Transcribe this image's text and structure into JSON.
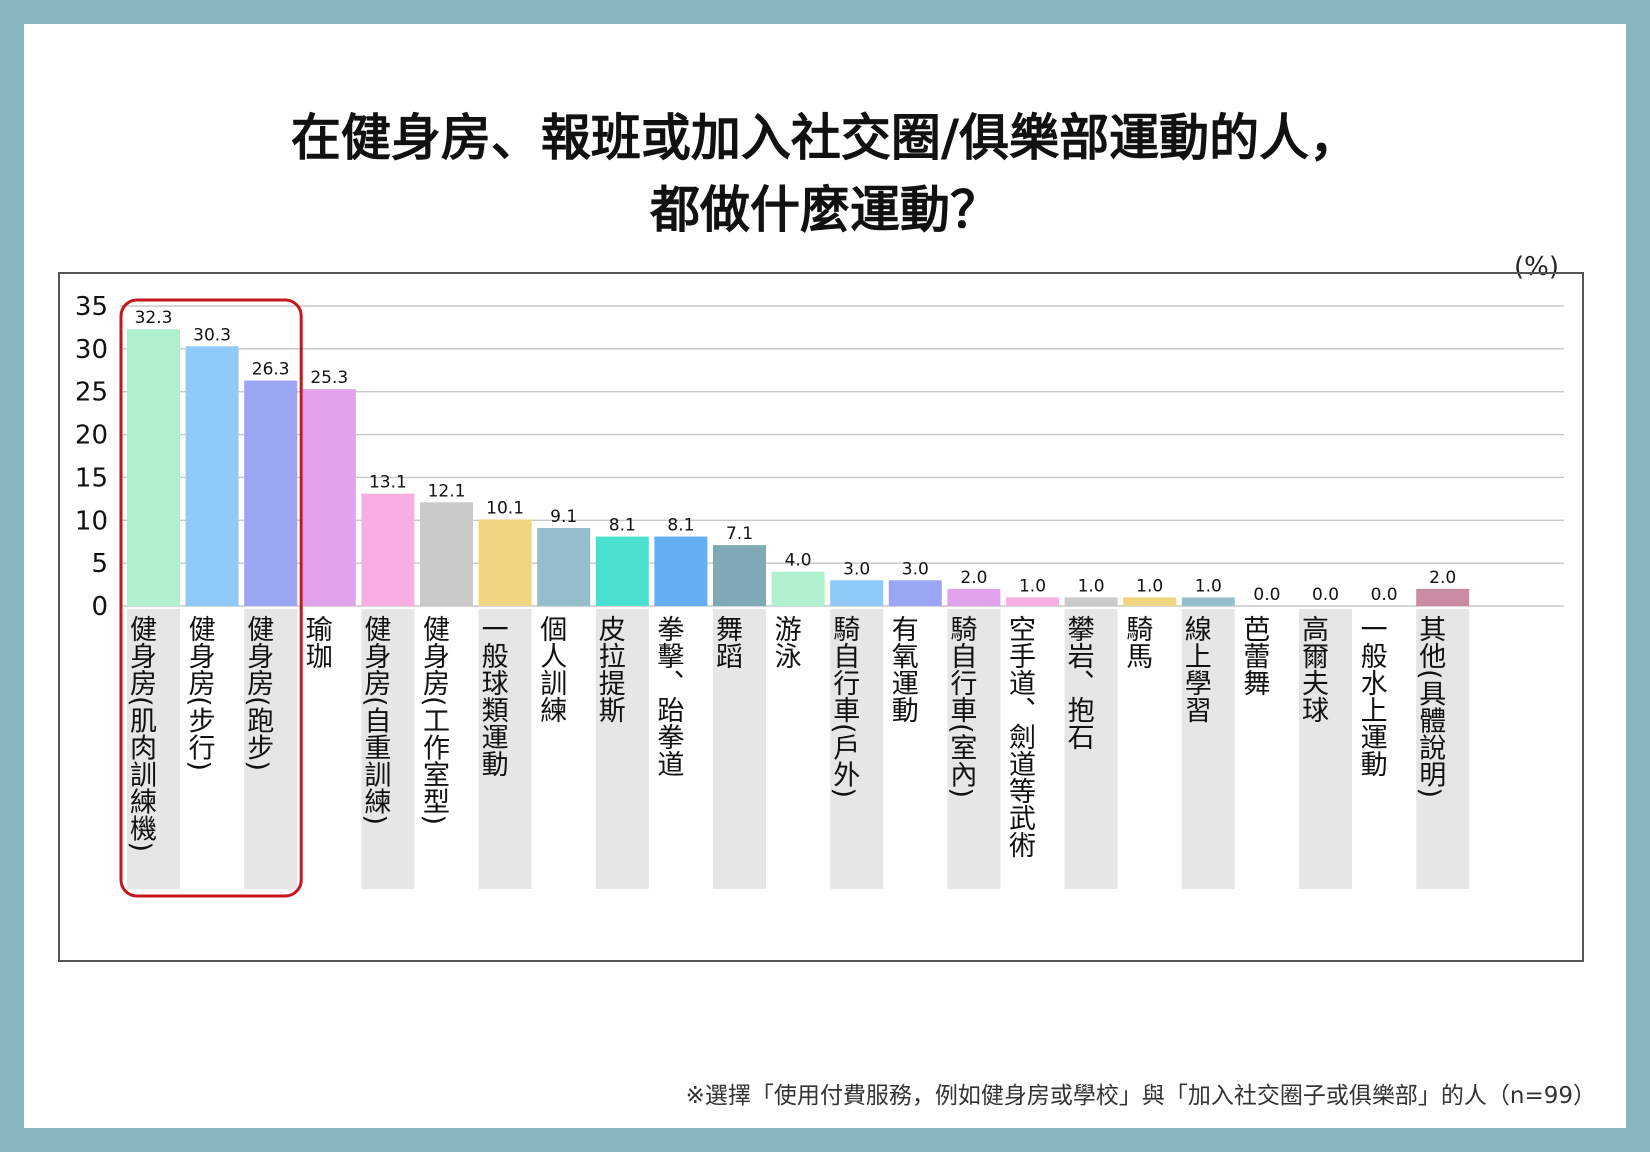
{
  "title_lines": [
    "在健身房、報班或加入社交圈/俱樂部運動的人，",
    "都做什麼運動？"
  ],
  "unit": "(%)",
  "footnote": "※選擇「使用付費服務，例如健身房或學校」與「加入社交圈子或俱樂部」的人（n=99）",
  "colors": {
    "highlight_box": "#c8161d",
    "label_band": "#e6e6e6",
    "grid": "#c8c8c8"
  },
  "chart_data": {
    "type": "bar",
    "title": "在健身房、報班或加入社交圈/俱樂部運動的人，都做什麼運動？",
    "ylabel": "(%)",
    "ylim": [
      0,
      35
    ],
    "yticks": [
      0,
      5,
      10,
      15,
      20,
      25,
      30,
      35
    ],
    "grid": true,
    "highlight": [
      0,
      1,
      2
    ],
    "categories": [
      "健身房(肌肉訓練機)",
      "健身房(步行)",
      "健身房(跑步)",
      "瑜珈",
      "健身房(自重訓練)",
      "健身房(工作室型)",
      "一般球類運動",
      "個人訓練",
      "皮拉提斯",
      "拳擊、跆拳道",
      "舞蹈",
      "游泳",
      "騎自行車(戶外)",
      "有氧運動",
      "騎自行車(室內)",
      "空手道、劍道等武術",
      "攀岩、抱石",
      "騎馬",
      "線上學習",
      "芭蕾舞",
      "高爾夫球",
      "一般水上運動",
      "其他(具體說明)"
    ],
    "values": [
      32.3,
      30.3,
      26.3,
      25.3,
      13.1,
      12.1,
      10.1,
      9.1,
      8.1,
      8.1,
      7.1,
      4.0,
      3.0,
      3.0,
      2.0,
      1.0,
      1.0,
      1.0,
      1.0,
      0.0,
      0.0,
      0.0,
      2.0
    ],
    "value_labels": [
      "32.3",
      "30.3",
      "26.3",
      "25.3",
      "13.1",
      "12.1",
      "10.1",
      "9.1",
      "8.1",
      "8.1",
      "7.1",
      "4.0",
      "3.0",
      "3.0",
      "2.0",
      "1.0",
      "1.0",
      "1.0",
      "1.0",
      "0.0",
      "0.0",
      "0.0",
      "2.0"
    ],
    "bar_colors": [
      "#b0f0cf",
      "#8fcaf8",
      "#9aa6f4",
      "#e0a3ec",
      "#f9aee1",
      "#c9cac9",
      "#f1d581",
      "#94bfca",
      "#4ae0cf",
      "#64aef2",
      "#7faab5",
      "#b0f0cf",
      "#8fcaf8",
      "#9aa6f4",
      "#e0a3ec",
      "#f9aee1",
      "#c9cac9",
      "#f1d581",
      "#94bfca",
      "#4ae0cf",
      "#64aef2",
      "#7faab5",
      "#cb8ca3"
    ]
  }
}
